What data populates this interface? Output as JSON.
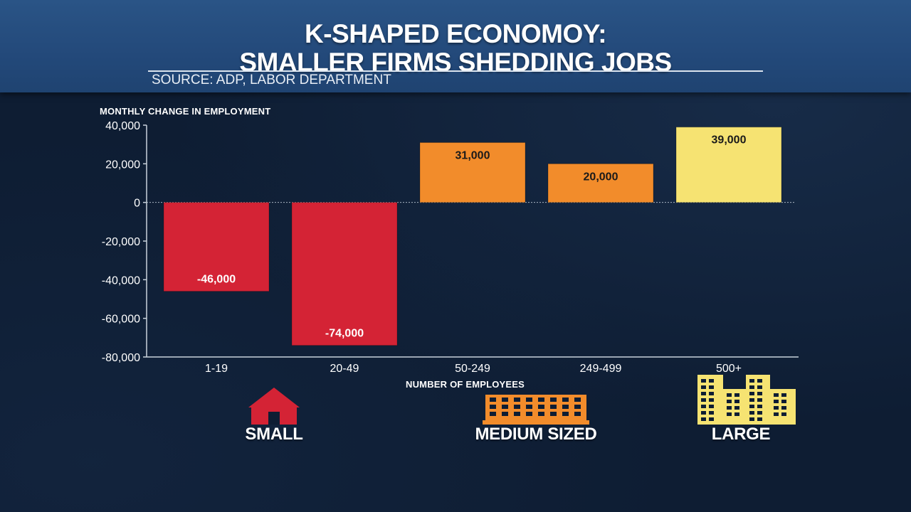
{
  "header": {
    "title_line1": "K-SHAPED ECONOMOY:",
    "title_line2": "SMALLER FIRMS SHEDDING JOBS",
    "source": "SOURCE: ADP, LABOR DEPARTMENT"
  },
  "chart_data": {
    "type": "bar",
    "ylabel": "MONTHLY CHANGE IN EMPLOYMENT",
    "xlabel": "NUMBER OF EMPLOYEES",
    "categories": [
      "1-19",
      "20-49",
      "50-249",
      "249-499",
      "500+"
    ],
    "values": [
      -46000,
      -74000,
      31000,
      20000,
      39000
    ],
    "data_labels": [
      "-46,000",
      "-74,000",
      "31,000",
      "20,000",
      "39,000"
    ],
    "bar_colors": [
      "#d42335",
      "#d42335",
      "#f28c2b",
      "#f28c2b",
      "#f6e372"
    ],
    "label_colors": [
      "#ffffff",
      "#ffffff",
      "#1a1a1a",
      "#1a1a1a",
      "#1a1a1a"
    ],
    "ylim": [
      -80000,
      40000
    ],
    "yticks": [
      40000,
      20000,
      0,
      -20000,
      -40000,
      -60000,
      -80000
    ],
    "ytick_labels": [
      "40,000",
      "20,000",
      "0",
      "-20,000",
      "-40,000",
      "-60,000",
      "-80,000"
    ]
  },
  "categories_footer": {
    "small": {
      "label": "SMALL",
      "icon": "house-icon",
      "color": "#d42335"
    },
    "medium": {
      "label": "MEDIUM SIZED",
      "icon": "building-icon",
      "color": "#f28c2b"
    },
    "large": {
      "label": "LARGE",
      "icon": "city-buildings-icon",
      "color": "#f6e372"
    }
  }
}
